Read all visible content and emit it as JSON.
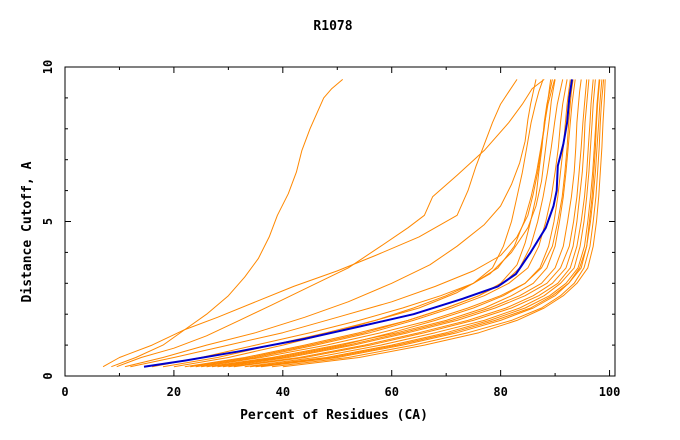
{
  "chart_data": {
    "type": "line",
    "title": "R1078",
    "xlabel": "Percent of Residues (CA)",
    "ylabel": "Distance Cutoff, A",
    "xlim": [
      0,
      101
    ],
    "ylim": [
      0,
      10
    ],
    "x_ticks": [
      "0",
      "20",
      "40",
      "60",
      "80",
      "100"
    ],
    "x_tick_values": [
      0,
      20,
      40,
      60,
      80,
      100
    ],
    "y_ticks": [
      "0",
      "5",
      "10"
    ],
    "y_tick_values": [
      0,
      5,
      10
    ],
    "grid": false,
    "legend": "none",
    "colors": {
      "highlight": "#0000cc",
      "others": "#ff8800",
      "frame": "#000000"
    },
    "highlight_series": {
      "x": [
        14.5,
        22,
        32,
        44,
        54,
        64,
        73,
        79.5,
        82.8,
        85.5,
        88.3,
        89.7,
        90.3,
        90.5,
        91.5,
        92.2,
        92.6,
        93.1
      ],
      "y": [
        0.3,
        0.5,
        0.8,
        1.2,
        1.6,
        2.0,
        2.5,
        2.9,
        3.3,
        4.0,
        4.8,
        5.5,
        6.0,
        6.8,
        7.5,
        8.2,
        9.0,
        9.6
      ]
    },
    "other_series": [
      {
        "x": [
          8.5,
          13,
          18,
          22,
          26,
          30,
          33,
          35.5,
          37.5,
          39,
          41,
          42.5,
          43.5,
          45,
          46.5,
          47.5,
          49,
          51
        ],
        "y": [
          0.3,
          0.6,
          1.0,
          1.5,
          2.0,
          2.6,
          3.2,
          3.8,
          4.5,
          5.2,
          5.9,
          6.6,
          7.3,
          8.0,
          8.6,
          9.0,
          9.3,
          9.6
        ]
      },
      {
        "x": [
          9.5,
          14,
          20,
          26,
          32,
          38,
          45,
          52,
          58,
          63,
          66,
          67.5,
          72,
          77,
          81.5,
          84,
          85.8,
          88
        ],
        "y": [
          0.3,
          0.6,
          0.9,
          1.3,
          1.8,
          2.3,
          2.9,
          3.5,
          4.2,
          4.8,
          5.2,
          5.8,
          6.5,
          7.3,
          8.2,
          8.8,
          9.3,
          9.6
        ]
      },
      {
        "x": [
          7,
          10,
          16,
          22,
          28,
          35,
          42,
          50,
          57,
          65,
          72,
          74,
          75.5,
          77,
          78.5,
          80,
          81.5,
          83
        ],
        "y": [
          0.3,
          0.6,
          1.0,
          1.5,
          1.9,
          2.4,
          2.9,
          3.4,
          3.9,
          4.5,
          5.2,
          6.0,
          6.8,
          7.5,
          8.2,
          8.8,
          9.2,
          9.6
        ]
      },
      {
        "x": [
          11,
          18,
          26,
          35,
          44,
          52,
          60,
          67,
          72,
          77,
          80,
          82,
          83.5,
          84.5,
          85,
          85.5,
          86,
          86.5
        ],
        "y": [
          0.3,
          0.6,
          1.0,
          1.4,
          1.9,
          2.4,
          3.0,
          3.6,
          4.2,
          4.9,
          5.5,
          6.2,
          6.9,
          7.6,
          8.3,
          8.8,
          9.2,
          9.6
        ]
      },
      {
        "x": [
          18,
          28,
          38,
          48,
          57,
          65,
          72,
          78,
          82,
          85,
          86.5,
          87.5,
          88,
          88.5,
          89,
          89.3,
          89.6,
          90
        ],
        "y": [
          0.3,
          0.6,
          1.0,
          1.4,
          1.8,
          2.2,
          2.7,
          3.3,
          4.0,
          4.8,
          5.5,
          6.3,
          7.0,
          7.7,
          8.4,
          8.9,
          9.2,
          9.6
        ]
      },
      {
        "x": [
          22,
          33,
          44,
          54,
          63,
          70,
          76,
          80,
          83,
          84.5,
          85.5,
          86.5,
          87,
          87.6,
          88,
          88.5,
          89,
          89.5
        ],
        "y": [
          0.3,
          0.6,
          1.0,
          1.4,
          1.8,
          2.2,
          2.6,
          3.0,
          3.6,
          4.3,
          5.0,
          5.8,
          6.6,
          7.4,
          8.2,
          8.8,
          9.2,
          9.6
        ]
      },
      {
        "x": [
          25,
          36,
          48,
          58,
          67,
          74,
          80,
          84.5,
          87.5,
          89.5,
          90.5,
          91.3,
          91.8,
          92.2,
          92.5,
          92.8,
          93,
          93.3
        ],
        "y": [
          0.3,
          0.6,
          1.0,
          1.4,
          1.8,
          2.2,
          2.6,
          3.0,
          3.5,
          4.2,
          5.0,
          5.8,
          6.6,
          7.4,
          8.2,
          8.8,
          9.2,
          9.6
        ]
      },
      {
        "x": [
          28,
          40,
          52,
          62,
          71,
          78,
          83.5,
          87.5,
          90,
          91.5,
          92.3,
          93,
          93.5,
          93.8,
          94,
          94.3,
          94.5,
          94.8
        ],
        "y": [
          0.3,
          0.6,
          1.0,
          1.4,
          1.8,
          2.2,
          2.6,
          3.0,
          3.5,
          4.2,
          5.0,
          5.8,
          6.6,
          7.4,
          8.2,
          8.8,
          9.2,
          9.6
        ]
      },
      {
        "x": [
          30,
          43,
          55,
          65,
          74,
          81,
          86,
          89.5,
          92,
          93.3,
          94,
          94.5,
          95,
          95.3,
          95.5,
          95.8,
          96,
          96.2
        ],
        "y": [
          0.3,
          0.6,
          1.0,
          1.4,
          1.8,
          2.2,
          2.6,
          3.0,
          3.5,
          4.2,
          5.0,
          5.8,
          6.6,
          7.4,
          8.2,
          8.8,
          9.2,
          9.6
        ]
      },
      {
        "x": [
          33,
          46,
          58,
          68,
          77,
          83.5,
          88,
          91,
          93.5,
          94.6,
          95.3,
          95.8,
          96.2,
          96.5,
          96.8,
          97,
          97.2,
          97.4
        ],
        "y": [
          0.3,
          0.6,
          1.0,
          1.4,
          1.8,
          2.2,
          2.6,
          3.0,
          3.5,
          4.2,
          5.0,
          5.8,
          6.6,
          7.4,
          8.2,
          8.8,
          9.2,
          9.6
        ]
      },
      {
        "x": [
          36,
          50,
          62,
          72,
          80,
          86,
          90,
          92.5,
          94.5,
          95.8,
          96.5,
          97,
          97.4,
          97.7,
          98,
          98.2,
          98.4,
          98.6
        ],
        "y": [
          0.3,
          0.6,
          1.0,
          1.4,
          1.8,
          2.2,
          2.6,
          3.0,
          3.5,
          4.2,
          5.0,
          5.8,
          6.6,
          7.4,
          8.2,
          8.8,
          9.2,
          9.6
        ]
      },
      {
        "x": [
          40,
          54,
          66,
          76,
          83,
          88,
          91.5,
          94,
          96,
          97,
          97.6,
          98,
          98.3,
          98.6,
          98.8,
          99,
          99.1,
          99.2
        ],
        "y": [
          0.3,
          0.6,
          1.0,
          1.4,
          1.8,
          2.2,
          2.6,
          3.0,
          3.5,
          4.2,
          5.0,
          5.8,
          6.6,
          7.4,
          8.2,
          8.8,
          9.2,
          9.6
        ]
      },
      {
        "x": [
          26,
          38,
          50,
          61,
          70,
          77,
          82,
          86,
          88.5,
          90,
          90.8,
          91.5,
          92,
          92.4,
          92.8,
          93.1,
          93.4,
          93.7
        ],
        "y": [
          0.3,
          0.6,
          1.0,
          1.4,
          1.8,
          2.2,
          2.6,
          3.0,
          3.5,
          4.2,
          5.0,
          5.8,
          6.6,
          7.4,
          8.2,
          8.8,
          9.2,
          9.6
        ]
      },
      {
        "x": [
          24,
          35,
          46,
          56,
          64,
          71,
          77,
          81.5,
          85,
          87,
          88.3,
          89.3,
          90,
          90.6,
          91,
          91.4,
          91.8,
          92.2
        ],
        "y": [
          0.3,
          0.6,
          1.0,
          1.4,
          1.8,
          2.2,
          2.6,
          3.0,
          3.5,
          4.2,
          5.0,
          5.8,
          6.6,
          7.4,
          8.2,
          8.8,
          9.2,
          9.6
        ]
      },
      {
        "x": [
          20,
          30,
          40,
          49,
          57,
          64,
          70,
          75,
          78.5,
          80.5,
          82,
          83,
          84,
          84.8,
          85.6,
          86.4,
          87,
          87.8
        ],
        "y": [
          0.3,
          0.6,
          1.0,
          1.4,
          1.8,
          2.2,
          2.6,
          3.0,
          3.5,
          4.2,
          5.0,
          5.8,
          6.6,
          7.4,
          8.2,
          8.8,
          9.2,
          9.6
        ]
      },
      {
        "x": [
          34,
          48,
          60,
          70,
          78,
          84.5,
          89,
          92,
          94.2,
          95.4,
          96,
          96.5,
          96.9,
          97.2,
          97.5,
          97.7,
          97.9,
          98.1
        ],
        "y": [
          0.3,
          0.6,
          1.0,
          1.4,
          1.8,
          2.2,
          2.6,
          3.0,
          3.5,
          4.2,
          5.0,
          5.8,
          6.6,
          7.4,
          8.2,
          8.8,
          9.2,
          9.6
        ]
      },
      {
        "x": [
          31,
          44,
          56,
          66,
          75,
          82,
          87,
          90.5,
          92.8,
          94,
          94.8,
          95.4,
          95.8,
          96.1,
          96.4,
          96.6,
          96.8,
          97
        ],
        "y": [
          0.3,
          0.6,
          1.0,
          1.4,
          1.8,
          2.2,
          2.6,
          3.0,
          3.5,
          4.2,
          5.0,
          5.8,
          6.6,
          7.4,
          8.2,
          8.8,
          9.2,
          9.6
        ]
      },
      {
        "x": [
          29,
          41,
          53,
          63,
          72,
          79,
          84.5,
          88.5,
          91,
          92.6,
          93.4,
          94,
          94.4,
          94.8,
          95.1,
          95.4,
          95.6,
          95.8
        ],
        "y": [
          0.3,
          0.6,
          1.0,
          1.4,
          1.8,
          2.2,
          2.6,
          3.0,
          3.5,
          4.2,
          5.0,
          5.8,
          6.6,
          7.4,
          8.2,
          8.8,
          9.2,
          9.6
        ]
      },
      {
        "x": [
          27,
          39,
          51,
          60,
          68,
          75,
          80.5,
          84.5,
          87.2,
          88.8,
          89.8,
          90.5,
          91,
          91.5,
          91.9,
          92.2,
          92.5,
          92.8
        ],
        "y": [
          0.3,
          0.6,
          1.0,
          1.4,
          1.8,
          2.2,
          2.6,
          3.0,
          3.5,
          4.2,
          5.0,
          5.8,
          6.6,
          7.4,
          8.2,
          8.8,
          9.2,
          9.6
        ]
      },
      {
        "x": [
          38,
          52,
          64,
          74,
          82,
          87.5,
          91,
          93.5,
          95.3,
          96.4,
          97,
          97.5,
          97.8,
          98.1,
          98.3,
          98.5,
          98.7,
          98.9
        ],
        "y": [
          0.3,
          0.6,
          1.0,
          1.4,
          1.8,
          2.2,
          2.6,
          3.0,
          3.5,
          4.2,
          5.0,
          5.8,
          6.6,
          7.4,
          8.2,
          8.8,
          9.2,
          9.6
        ]
      },
      {
        "x": [
          23,
          34,
          45,
          55,
          63,
          70,
          76,
          80.5,
          83.5,
          85.5,
          86.8,
          87.8,
          88.6,
          89.3,
          89.9,
          90.4,
          90.9,
          91.4
        ],
        "y": [
          0.3,
          0.6,
          1.0,
          1.4,
          1.8,
          2.2,
          2.6,
          3.0,
          3.5,
          4.2,
          5.0,
          5.8,
          6.6,
          7.4,
          8.2,
          8.8,
          9.2,
          9.6
        ]
      },
      {
        "x": [
          35,
          49,
          61,
          71,
          79,
          85.5,
          89.5,
          92.5,
          94.8,
          95.8,
          96.3,
          96.8,
          97.1,
          97.4,
          97.6,
          97.8,
          98,
          98.2
        ],
        "y": [
          0.3,
          0.6,
          1.0,
          1.4,
          1.8,
          2.2,
          2.6,
          3.0,
          3.5,
          4.2,
          5.0,
          5.8,
          6.6,
          7.4,
          8.2,
          8.8,
          9.2,
          9.6
        ]
      },
      {
        "x": [
          12,
          20,
          30,
          40,
          50,
          60,
          68,
          75,
          80,
          83,
          85,
          86,
          86.8,
          87.4,
          88,
          88.4,
          88.8,
          89.2
        ],
        "y": [
          0.3,
          0.6,
          1.0,
          1.4,
          1.9,
          2.4,
          2.9,
          3.4,
          3.9,
          4.5,
          5.2,
          5.9,
          6.6,
          7.3,
          8.0,
          8.6,
          9.1,
          9.6
        ]
      },
      {
        "x": [
          16,
          25,
          35,
          45,
          54,
          62,
          69,
          75,
          79.5,
          82.5,
          84.3,
          85.6,
          86.6,
          87.4,
          88.1,
          88.7,
          89.3,
          89.9
        ],
        "y": [
          0.3,
          0.6,
          1.0,
          1.4,
          1.8,
          2.2,
          2.6,
          3.0,
          3.5,
          4.2,
          5.0,
          5.8,
          6.6,
          7.4,
          8.2,
          8.8,
          9.2,
          9.6
        ]
      }
    ]
  }
}
